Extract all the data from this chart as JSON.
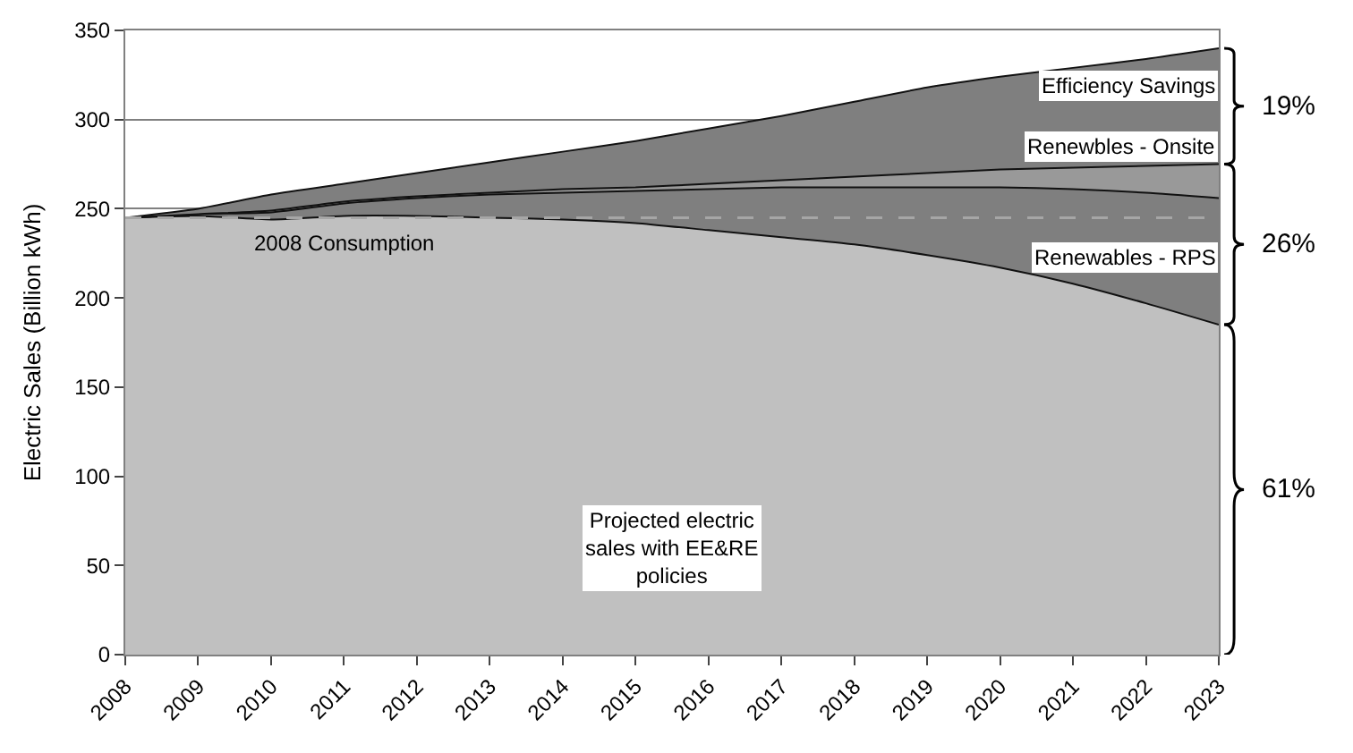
{
  "chart_data": {
    "type": "area",
    "stacked": true,
    "ylabel": "Electric Sales (Billion kWh)",
    "x": [
      2008,
      2009,
      2010,
      2011,
      2012,
      2013,
      2014,
      2015,
      2016,
      2017,
      2018,
      2019,
      2020,
      2021,
      2022,
      2023
    ],
    "xlim": [
      2008,
      2023
    ],
    "xticks": [
      2008,
      2009,
      2010,
      2011,
      2012,
      2013,
      2014,
      2015,
      2016,
      2017,
      2018,
      2019,
      2020,
      2021,
      2022,
      2023
    ],
    "ylim": [
      0,
      350
    ],
    "yticks": [
      0,
      50,
      100,
      150,
      200,
      250,
      300,
      350
    ],
    "grid": "y",
    "legend": false,
    "series": [
      {
        "name": "Projected electric sales with EE&RE policies",
        "color": "#c0c0c0",
        "values": [
          245,
          246,
          244,
          246,
          246,
          245,
          244,
          242,
          238,
          234,
          230,
          224,
          217,
          208,
          197,
          185
        ]
      },
      {
        "name": "Renewables - RPS",
        "color": "#7f7f7f",
        "values": [
          0,
          1,
          4,
          7,
          10,
          13,
          15,
          18,
          23,
          28,
          32,
          38,
          45,
          53,
          62,
          71
        ]
      },
      {
        "name": "Renewbles - Onsite",
        "color": "#999999",
        "values": [
          0,
          0,
          1,
          1,
          1,
          1,
          2,
          2,
          3,
          4,
          6,
          8,
          10,
          12,
          15,
          19
        ]
      },
      {
        "name": "Efficiency Savings",
        "color": "#7f7f7f",
        "values": [
          0,
          3,
          9,
          10,
          13,
          17,
          21,
          26,
          31,
          36,
          42,
          48,
          52,
          56,
          60,
          65
        ]
      }
    ],
    "ref_lines": [
      {
        "axis": "y",
        "value": 245,
        "label": "2008 Consumption",
        "color": "#a6a6a6",
        "line_style": "dashed"
      }
    ],
    "annotations": [
      "19%",
      "26%",
      "61%"
    ]
  }
}
